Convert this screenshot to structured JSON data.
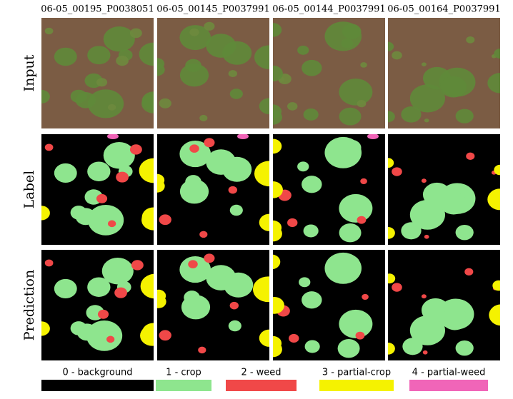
{
  "figure": {
    "columns": [
      "06-05_00195_P0038051",
      "06-05_00145_P0037991",
      "06-05_00144_P0037991",
      "06-05_00164_P0037991"
    ],
    "rows": [
      "Input",
      "Label",
      "Prediction"
    ],
    "legend": [
      {
        "name": "0 - background",
        "color": "#000000"
      },
      {
        "name": "1 - crop",
        "color": "#8ee58e"
      },
      {
        "name": "2 - weed",
        "color": "#f04848"
      },
      {
        "name": "3 - partial-crop",
        "color": "#f5f200"
      },
      {
        "name": "4 - partial-weed",
        "color": "#f065b8"
      }
    ]
  }
}
